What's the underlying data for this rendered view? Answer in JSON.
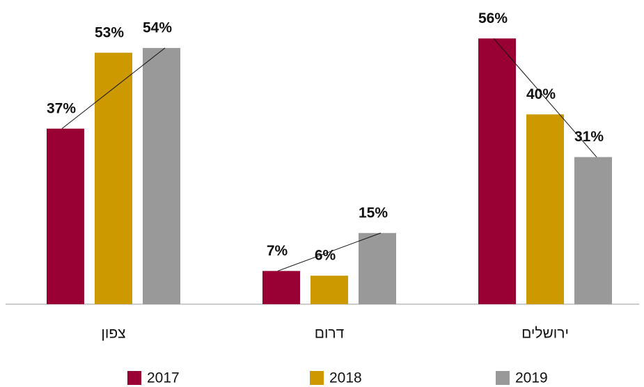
{
  "chart_data": {
    "type": "bar",
    "categories": [
      "צפון",
      "דרום",
      "ירושלים"
    ],
    "series": [
      {
        "name": "2017",
        "color": "#990033",
        "values": [
          37,
          7,
          56
        ],
        "value_labels": [
          "37%",
          "7%",
          "56%"
        ]
      },
      {
        "name": "2018",
        "color": "#cc9900",
        "values": [
          53,
          6,
          40
        ],
        "value_labels": [
          "53%",
          "6%",
          "40%"
        ]
      },
      {
        "name": "2019",
        "color": "#999999",
        "values": [
          54,
          15,
          31
        ],
        "value_labels": [
          "54%",
          "15%",
          "31%"
        ]
      }
    ],
    "ylim": [
      0,
      60
    ],
    "grid": false
  }
}
